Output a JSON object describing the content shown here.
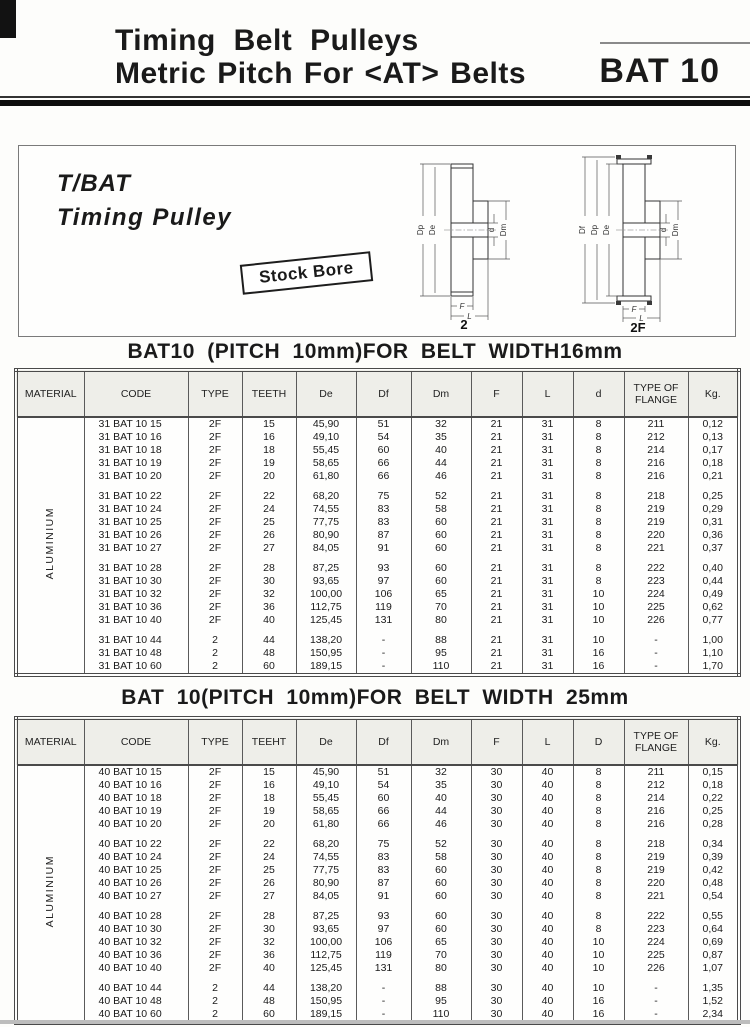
{
  "header": {
    "title_line1": "Timing Belt Pulleys",
    "title_line2": "Metric Pitch For <AT> Belts",
    "code": "BAT 10"
  },
  "info_box": {
    "product_line1": "T/BAT",
    "product_line2": "Timing Pulley",
    "stock_bore": "Stock Bore"
  },
  "diagrams": {
    "d2": {
      "label": "2",
      "dp": "Dp",
      "de": "De",
      "d": "d",
      "dm": "Dm",
      "f": "F",
      "l": "L"
    },
    "d2f": {
      "label": "2F",
      "df": "Df",
      "dp": "Dp",
      "de": "De",
      "d": "d",
      "dm": "Dm",
      "f": "F",
      "l": "L"
    }
  },
  "tables": [
    {
      "title": "BAT10 (PITCH 10mm)FOR BELT WIDTH16mm",
      "material": "ALUMINIUM",
      "columns": [
        "MATERIAL",
        "CODE",
        "TYPE",
        "TEETH",
        "De",
        "Df",
        "Dm",
        "F",
        "L",
        "d",
        "TYPE OF FLANGE",
        "Kg."
      ],
      "groups": [
        [
          [
            "31 BAT 10 15",
            "2F",
            "15",
            "45,90",
            "51",
            "32",
            "21",
            "31",
            "8",
            "211",
            "0,12"
          ],
          [
            "31 BAT 10 16",
            "2F",
            "16",
            "49,10",
            "54",
            "35",
            "21",
            "31",
            "8",
            "212",
            "0,13"
          ],
          [
            "31 BAT 10 18",
            "2F",
            "18",
            "55,45",
            "60",
            "40",
            "21",
            "31",
            "8",
            "214",
            "0,17"
          ],
          [
            "31 BAT 10 19",
            "2F",
            "19",
            "58,65",
            "66",
            "44",
            "21",
            "31",
            "8",
            "216",
            "0,18"
          ],
          [
            "31 BAT 10 20",
            "2F",
            "20",
            "61,80",
            "66",
            "46",
            "21",
            "31",
            "8",
            "216",
            "0,21"
          ]
        ],
        [
          [
            "31 BAT 10 22",
            "2F",
            "22",
            "68,20",
            "75",
            "52",
            "21",
            "31",
            "8",
            "218",
            "0,25"
          ],
          [
            "31 BAT 10 24",
            "2F",
            "24",
            "74,55",
            "83",
            "58",
            "21",
            "31",
            "8",
            "219",
            "0,29"
          ],
          [
            "31 BAT 10 25",
            "2F",
            "25",
            "77,75",
            "83",
            "60",
            "21",
            "31",
            "8",
            "219",
            "0,31"
          ],
          [
            "31 BAT 10 26",
            "2F",
            "26",
            "80,90",
            "87",
            "60",
            "21",
            "31",
            "8",
            "220",
            "0,36"
          ],
          [
            "31 BAT 10 27",
            "2F",
            "27",
            "84,05",
            "91",
            "60",
            "21",
            "31",
            "8",
            "221",
            "0,37"
          ]
        ],
        [
          [
            "31 BAT 10 28",
            "2F",
            "28",
            "87,25",
            "93",
            "60",
            "21",
            "31",
            "8",
            "222",
            "0,40"
          ],
          [
            "31 BAT 10 30",
            "2F",
            "30",
            "93,65",
            "97",
            "60",
            "21",
            "31",
            "8",
            "223",
            "0,44"
          ],
          [
            "31 BAT 10 32",
            "2F",
            "32",
            "100,00",
            "106",
            "65",
            "21",
            "31",
            "10",
            "224",
            "0,49"
          ],
          [
            "31 BAT 10 36",
            "2F",
            "36",
            "112,75",
            "119",
            "70",
            "21",
            "31",
            "10",
            "225",
            "0,62"
          ],
          [
            "31 BAT 10 40",
            "2F",
            "40",
            "125,45",
            "131",
            "80",
            "21",
            "31",
            "10",
            "226",
            "0,77"
          ]
        ],
        [
          [
            "31 BAT 10 44",
            "2",
            "44",
            "138,20",
            "-",
            "88",
            "21",
            "31",
            "10",
            "-",
            "1,00"
          ],
          [
            "31 BAT 10 48",
            "2",
            "48",
            "150,95",
            "-",
            "95",
            "21",
            "31",
            "16",
            "-",
            "1,10"
          ],
          [
            "31 BAT 10 60",
            "2",
            "60",
            "189,15",
            "-",
            "110",
            "21",
            "31",
            "16",
            "-",
            "1,70"
          ]
        ]
      ]
    },
    {
      "title": "BAT 10(PITCH 10mm)FOR BELT WIDTH 25mm",
      "material": "ALUMINIUM",
      "columns": [
        "MATERIAL",
        "CODE",
        "TYPE",
        "TEEHT",
        "De",
        "Df",
        "Dm",
        "F",
        "L",
        "D",
        "TYPE OF FLANGE",
        "Kg."
      ],
      "groups": [
        [
          [
            "40 BAT 10 15",
            "2F",
            "15",
            "45,90",
            "51",
            "32",
            "30",
            "40",
            "8",
            "211",
            "0,15"
          ],
          [
            "40 BAT 10 16",
            "2F",
            "16",
            "49,10",
            "54",
            "35",
            "30",
            "40",
            "8",
            "212",
            "0,18"
          ],
          [
            "40 BAT 10 18",
            "2F",
            "18",
            "55,45",
            "60",
            "40",
            "30",
            "40",
            "8",
            "214",
            "0,22"
          ],
          [
            "40 BAT 10 19",
            "2F",
            "19",
            "58,65",
            "66",
            "44",
            "30",
            "40",
            "8",
            "216",
            "0,25"
          ],
          [
            "40 BAT 10 20",
            "2F",
            "20",
            "61,80",
            "66",
            "46",
            "30",
            "40",
            "8",
            "216",
            "0,28"
          ]
        ],
        [
          [
            "40 BAT 10 22",
            "2F",
            "22",
            "68,20",
            "75",
            "52",
            "30",
            "40",
            "8",
            "218",
            "0,34"
          ],
          [
            "40 BAT 10 24",
            "2F",
            "24",
            "74,55",
            "83",
            "58",
            "30",
            "40",
            "8",
            "219",
            "0,39"
          ],
          [
            "40 BAT 10 25",
            "2F",
            "25",
            "77,75",
            "83",
            "60",
            "30",
            "40",
            "8",
            "219",
            "0,42"
          ],
          [
            "40 BAT 10 26",
            "2F",
            "26",
            "80,90",
            "87",
            "60",
            "30",
            "40",
            "8",
            "220",
            "0,48"
          ],
          [
            "40 BAT 10 27",
            "2F",
            "27",
            "84,05",
            "91",
            "60",
            "30",
            "40",
            "8",
            "221",
            "0,54"
          ]
        ],
        [
          [
            "40 BAT 10 28",
            "2F",
            "28",
            "87,25",
            "93",
            "60",
            "30",
            "40",
            "8",
            "222",
            "0,55"
          ],
          [
            "40 BAT 10 30",
            "2F",
            "30",
            "93,65",
            "97",
            "60",
            "30",
            "40",
            "8",
            "223",
            "0,64"
          ],
          [
            "40 BAT 10 32",
            "2F",
            "32",
            "100,00",
            "106",
            "65",
            "30",
            "40",
            "10",
            "224",
            "0,69"
          ],
          [
            "40 BAT 10 36",
            "2F",
            "36",
            "112,75",
            "119",
            "70",
            "30",
            "40",
            "10",
            "225",
            "0,87"
          ],
          [
            "40 BAT 10 40",
            "2F",
            "40",
            "125,45",
            "131",
            "80",
            "30",
            "40",
            "10",
            "226",
            "1,07"
          ]
        ],
        [
          [
            "40 BAT 10 44",
            "2",
            "44",
            "138,20",
            "-",
            "88",
            "30",
            "40",
            "10",
            "-",
            "1,35"
          ],
          [
            "40 BAT 10 48",
            "2",
            "48",
            "150,95",
            "-",
            "95",
            "30",
            "40",
            "16",
            "-",
            "1,52"
          ],
          [
            "40 BAT 10 60",
            "2",
            "60",
            "189,15",
            "-",
            "110",
            "30",
            "40",
            "16",
            "-",
            "2,34"
          ]
        ]
      ]
    }
  ]
}
